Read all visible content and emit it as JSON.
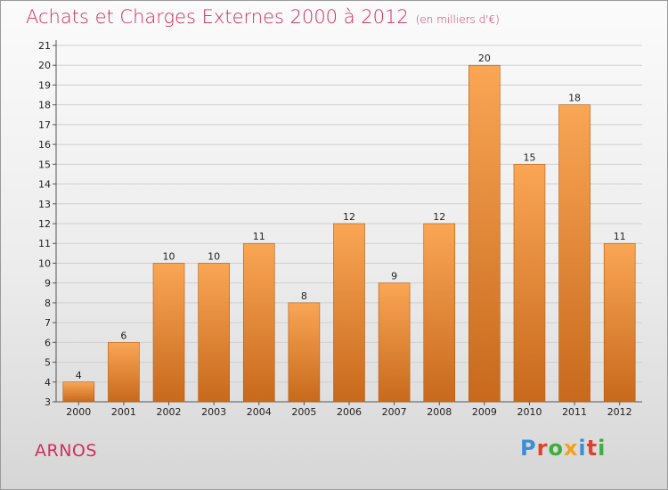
{
  "header": {
    "title": "Achats et Charges Externes 2000 à 2012",
    "unit": "(en milliers d'€)"
  },
  "footer": {
    "commune": "ARNOS",
    "logo_text": "Proxiti",
    "logo_colors": [
      "#3b8fd6",
      "#e0412c",
      "#3cae3c",
      "#f2a11c",
      "#3b8fd6",
      "#e0412c",
      "#3cae3c"
    ]
  },
  "colors": {
    "title": "#d12e5d",
    "bar_light": "#f9a655",
    "bar_dark": "#c8691c",
    "grid": "#cfcfcf"
  },
  "chart_data": {
    "type": "bar",
    "title": "Achats et Charges Externes 2000 à 2012",
    "subtitle": "(en milliers d'€)",
    "categories": [
      "2000",
      "2001",
      "2002",
      "2003",
      "2004",
      "2005",
      "2006",
      "2007",
      "2008",
      "2009",
      "2010",
      "2011",
      "2012"
    ],
    "values": [
      4,
      6,
      10,
      10,
      11,
      8,
      12,
      9,
      12,
      20,
      15,
      18,
      11
    ],
    "ylim": [
      3,
      21
    ],
    "yticks": [
      3,
      4,
      5,
      6,
      7,
      8,
      9,
      10,
      11,
      12,
      13,
      14,
      15,
      16,
      17,
      18,
      19,
      20,
      21
    ],
    "grid": true,
    "xlabel": "",
    "ylabel": ""
  }
}
